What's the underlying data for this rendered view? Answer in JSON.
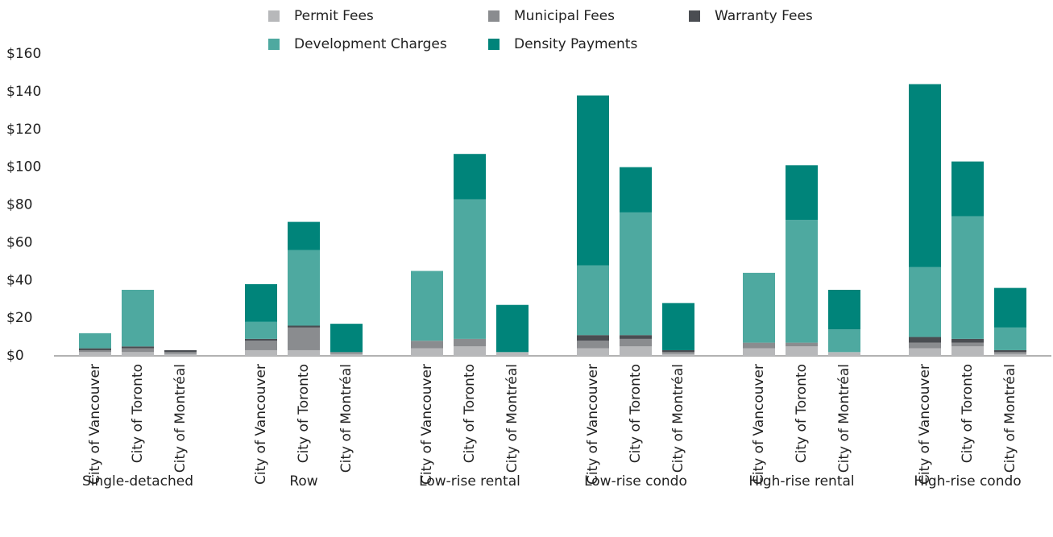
{
  "chart_data": {
    "type": "stacked_bar",
    "groups": [
      "Single-detached",
      "Row",
      "Low-rise rental",
      "Low-rise condo",
      "High-rise rental",
      "High-rise condo"
    ],
    "categories": [
      "City of Vancouver",
      "City of Toronto",
      "City of Montréal",
      "City of Vancouver",
      "City of Toronto",
      "City of Montréal",
      "City of Vancouver",
      "City of Toronto",
      "City of Montréal",
      "City of Vancouver",
      "City of Toronto",
      "City of Montréal",
      "City of Vancouver",
      "City of Toronto",
      "City of Montréal",
      "City of Vancouver",
      "City of Toronto",
      "City of Montréal"
    ],
    "series": [
      {
        "name": "Permit Fees",
        "color": "#b7b8ba",
        "values": [
          2,
          2,
          1,
          3,
          3,
          1,
          4,
          5,
          2,
          4,
          5,
          1,
          4,
          5,
          2,
          4,
          5,
          1
        ]
      },
      {
        "name": "Municipal Fees",
        "color": "#8a8c8f",
        "values": [
          1,
          2,
          1,
          5,
          12,
          1,
          4,
          4,
          0,
          4,
          4,
          1,
          3,
          2,
          0,
          3,
          2,
          1
        ]
      },
      {
        "name": "Warranty Fees",
        "color": "#4a4d52",
        "values": [
          1,
          1,
          1,
          1,
          1,
          0,
          0,
          0,
          0,
          3,
          2,
          1,
          0,
          0,
          0,
          3,
          2,
          1
        ]
      },
      {
        "name": "Development Charges",
        "color": "#4ea9a0",
        "values": [
          8,
          30,
          0,
          9,
          40,
          0,
          37,
          74,
          0,
          37,
          65,
          0,
          37,
          65,
          12,
          37,
          65,
          12
        ]
      },
      {
        "name": "Density Payments",
        "color": "#00847a",
        "values": [
          0,
          0,
          0,
          20,
          15,
          15,
          0,
          24,
          25,
          90,
          24,
          25,
          0,
          29,
          21,
          97,
          29,
          21
        ]
      }
    ],
    "ylim": [
      0,
      160
    ],
    "yticks": [
      {
        "value": 0,
        "label": "$0"
      },
      {
        "value": 20,
        "label": "$20"
      },
      {
        "value": 40,
        "label": "$40"
      },
      {
        "value": 60,
        "label": "$60"
      },
      {
        "value": 80,
        "label": "$80"
      },
      {
        "value": 100,
        "label": "$100"
      },
      {
        "value": 120,
        "label": "$120"
      },
      {
        "value": 140,
        "label": "$140"
      },
      {
        "value": 160,
        "label": "$160"
      }
    ]
  }
}
